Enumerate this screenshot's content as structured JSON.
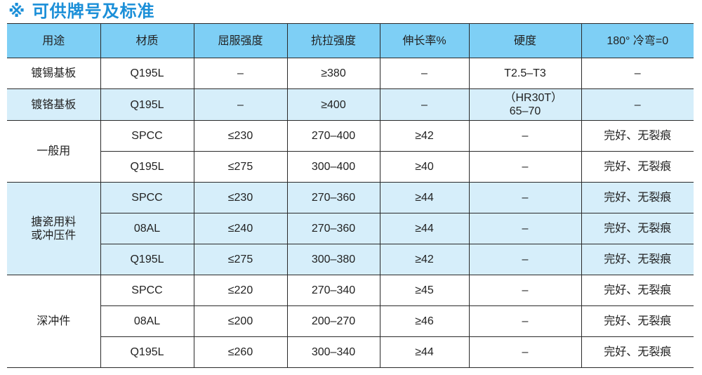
{
  "title": "※ 可供牌号及标准",
  "colors": {
    "title": "#1b8fd8",
    "header_bg": "#7ecff5",
    "alt_row_bg": "#d6eefa",
    "border": "#2a2a2a"
  },
  "headers": [
    "用途",
    "材质",
    "屈服强度",
    "抗拉强度",
    "伸长率%",
    "硬度",
    "180° 冷弯=0"
  ],
  "groups": [
    {
      "use": "镀锡基板",
      "rows": [
        [
          "Q195L",
          "–",
          "≥380",
          "–",
          "T2.5–T3",
          "–"
        ]
      ]
    },
    {
      "use": "镀铬基板",
      "rows": [
        [
          "Q195L",
          "–",
          "≥400",
          "–",
          "（HR30T）65–70",
          "–"
        ]
      ]
    },
    {
      "use": "一般用",
      "rows": [
        [
          "SPCC",
          "≤230",
          "270–400",
          "≥42",
          "–",
          "完好、无裂痕"
        ],
        [
          "Q195L",
          "≤275",
          "300–400",
          "≥40",
          "–",
          "完好、无裂痕"
        ]
      ]
    },
    {
      "use": "搪瓷用料或冲压件",
      "rows": [
        [
          "SPCC",
          "≤230",
          "270–360",
          "≥44",
          "–",
          "完好、无裂痕"
        ],
        [
          "08AL",
          "≤240",
          "270–360",
          "≥44",
          "–",
          "完好、无裂痕"
        ],
        [
          "Q195L",
          "≤275",
          "300–380",
          "≥42",
          "–",
          "完好、无裂痕"
        ]
      ]
    },
    {
      "use": "深冲件",
      "rows": [
        [
          "SPCC",
          "≤220",
          "270–340",
          "≥45",
          "–",
          "完好、无裂痕"
        ],
        [
          "08AL",
          "≤200",
          "200–270",
          "≥46",
          "–",
          "完好、无裂痕"
        ],
        [
          "Q195L",
          "≤260",
          "300–340",
          "≥44",
          "–",
          "完好、无裂痕"
        ]
      ]
    }
  ]
}
